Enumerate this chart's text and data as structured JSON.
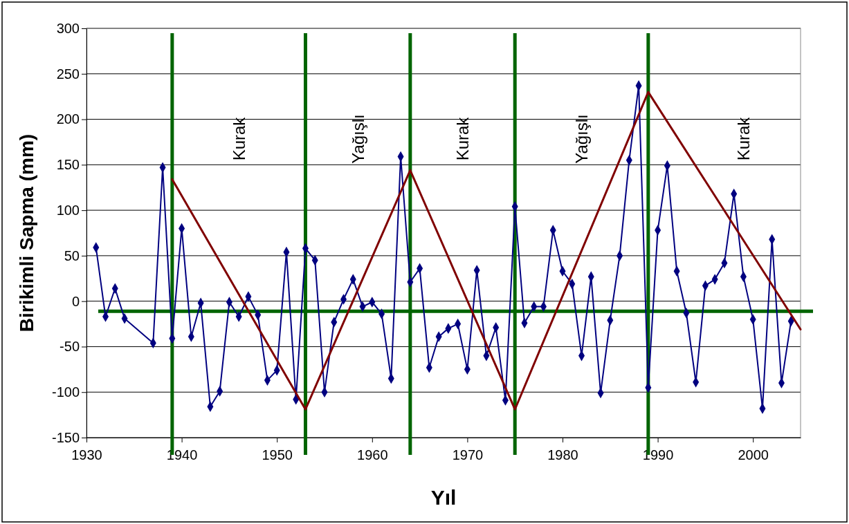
{
  "chart_data": {
    "type": "line",
    "xlabel": "Yıl",
    "ylabel": "Birikimli Sapma (mm)",
    "xlim": [
      1930,
      2005
    ],
    "xticks": [
      1930,
      1940,
      1950,
      1960,
      1970,
      1980,
      1990,
      2000
    ],
    "ylim": [
      -150,
      300
    ],
    "yticks": [
      -150,
      -100,
      -50,
      0,
      50,
      100,
      150,
      200,
      250,
      300
    ],
    "grid": "y",
    "line_style": "solid",
    "series": [
      {
        "color": "#000080",
        "marker": "diamond",
        "x": [
          1931,
          1932,
          1933,
          1934,
          1937,
          1938,
          1939,
          1940,
          1941,
          1942,
          1943,
          1944,
          1945,
          1946,
          1947,
          1948,
          1949,
          1950,
          1951,
          1952,
          1953,
          1954,
          1955,
          1956,
          1957,
          1958,
          1959,
          1960,
          1961,
          1962,
          1963,
          1964,
          1965,
          1966,
          1967,
          1968,
          1969,
          1970,
          1971,
          1972,
          1973,
          1974,
          1975,
          1976,
          1977,
          1978,
          1979,
          1980,
          1981,
          1982,
          1983,
          1984,
          1985,
          1986,
          1987,
          1988,
          1989,
          1990,
          1991,
          1992,
          1993,
          1994,
          1995,
          1996,
          1997,
          1998,
          1999,
          2000,
          2001,
          2002,
          2003,
          2004
        ],
        "values": [
          59,
          -17,
          14,
          -19,
          -46,
          147,
          -41,
          80,
          -39,
          -2,
          -116,
          -99,
          -1,
          -17,
          5,
          -15,
          -87,
          -76,
          54,
          -108,
          58,
          45,
          -100,
          -23,
          2,
          24,
          -6,
          -1,
          -14,
          -85,
          159,
          21,
          36,
          -73,
          -39,
          -30,
          -25,
          -75,
          34,
          -60,
          -29,
          -109,
          104,
          -24,
          -6,
          -6,
          78,
          33,
          19,
          -60,
          27,
          -101,
          -21,
          50,
          155,
          237,
          -95,
          78,
          149,
          33,
          -13,
          -89,
          17,
          24,
          42,
          118,
          27,
          -20,
          -118,
          68,
          -90,
          -22
        ]
      },
      {
        "color": "#800000",
        "marker": "none",
        "x": [
          1939,
          1953,
          1964,
          1975,
          1989,
          2005
        ],
        "values": [
          134,
          -119,
          144,
          -119,
          230,
          -31
        ]
      }
    ],
    "ref_lines": [
      {
        "axis": "x",
        "value": 1939,
        "color": "#006400"
      },
      {
        "axis": "x",
        "value": 1953,
        "color": "#006400"
      },
      {
        "axis": "x",
        "value": 1964,
        "color": "#006400"
      },
      {
        "axis": "x",
        "value": 1975,
        "color": "#006400"
      },
      {
        "axis": "x",
        "value": 1989,
        "color": "#006400"
      },
      {
        "axis": "y",
        "value": -11,
        "color": "#006400"
      }
    ],
    "annotations": [
      "Kurak",
      "Yağışlı",
      "Kurak",
      "Yağışlı",
      "Kurak"
    ]
  }
}
